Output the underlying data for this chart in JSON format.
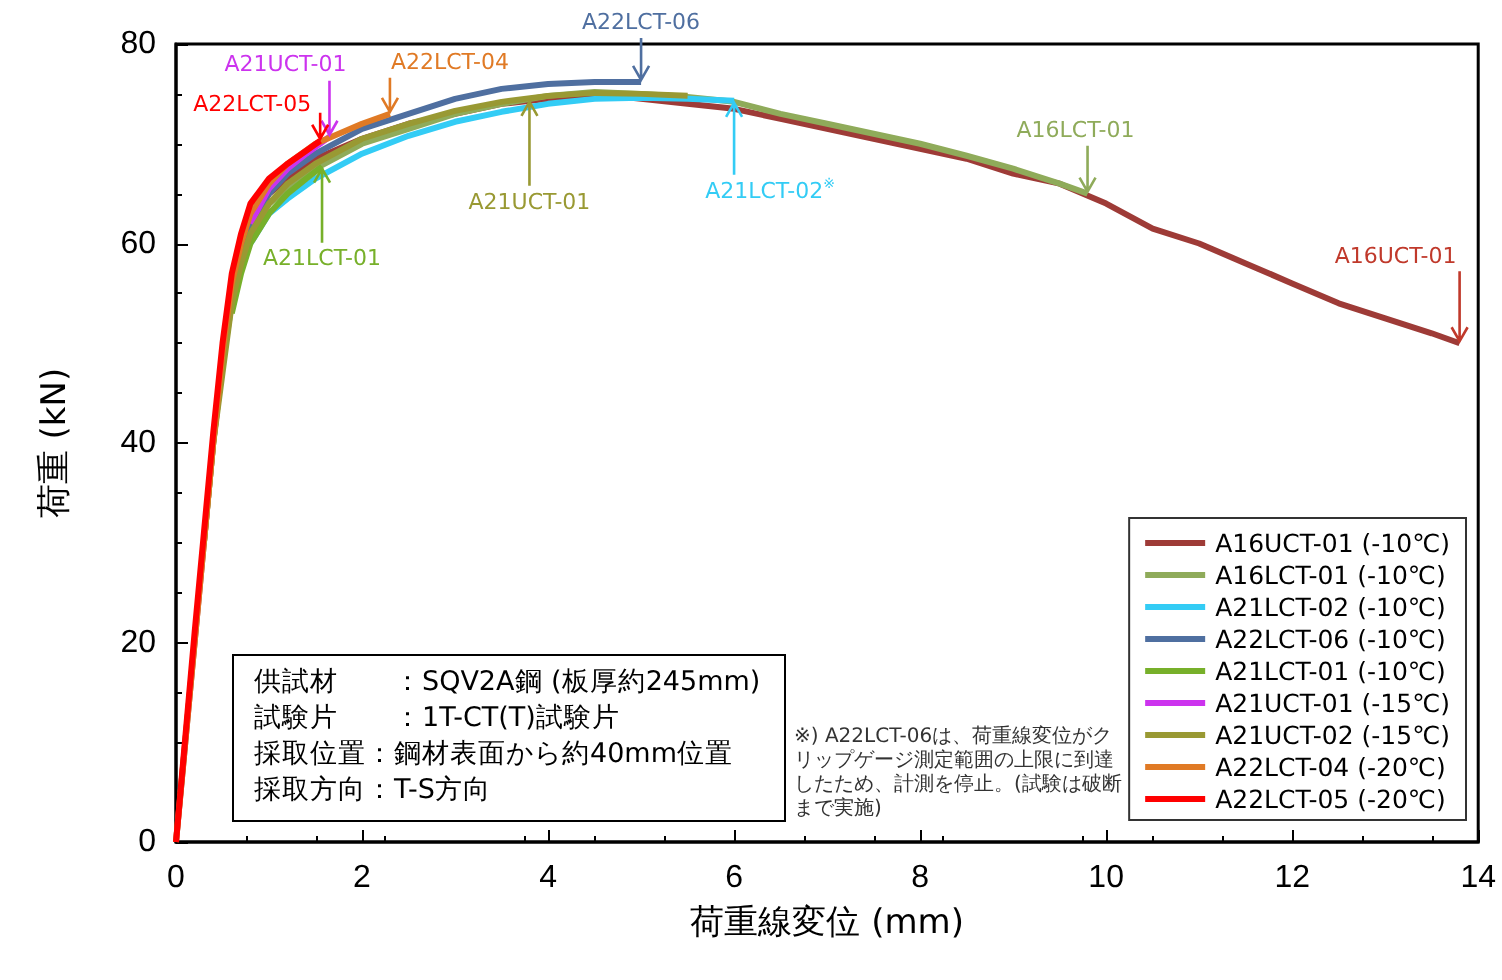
{
  "chart_data": {
    "type": "line",
    "xlabel": "荷重線変位 (mm)",
    "ylabel": "荷重 (kN)",
    "xlim": [
      0,
      14
    ],
    "xticks": [
      0,
      2,
      4,
      6,
      8,
      10,
      12,
      14
    ],
    "ylim": [
      0,
      80
    ],
    "yticks": [
      0,
      20,
      40,
      60,
      80
    ],
    "legend": "bottom right",
    "marker": "none",
    "line_style": "solid",
    "series": [
      {
        "name": "A16UCT-01 (-10℃)",
        "color": "#9e3b37",
        "x": [
          0,
          0.1,
          0.2,
          0.3,
          0.4,
          0.5,
          0.6,
          0.7,
          0.8,
          1,
          1.2,
          1.5,
          2,
          2.5,
          3,
          3.5,
          4,
          4.5,
          5,
          5.5,
          6,
          6.5,
          7,
          7.5,
          8,
          8.5,
          9,
          9.5,
          10,
          10.5,
          11,
          11.5,
          12,
          12.5,
          13,
          13.5,
          13.8
        ],
        "values": [
          0,
          10,
          20,
          30,
          40,
          48,
          55,
          59,
          62,
          65,
          66.5,
          68.5,
          70.5,
          72,
          73,
          74,
          74.5,
          75,
          74.5,
          74,
          73.5,
          72.5,
          71.5,
          70.5,
          69.5,
          68.5,
          67,
          66,
          64,
          61.5,
          60,
          58,
          56,
          54,
          52.5,
          51,
          50
        ]
      },
      {
        "name": "A16LCT-01 (-10℃)",
        "color": "#8fab5a",
        "x": [
          0.3,
          0.4,
          0.5,
          0.6,
          0.7,
          0.8,
          1,
          1.2,
          1.5,
          2,
          2.5,
          3,
          3.5,
          4,
          4.5,
          5,
          5.5,
          6,
          6.5,
          7,
          7.5,
          8,
          8.5,
          9,
          9.5,
          9.8
        ],
        "values": [
          30,
          40,
          48,
          54,
          58,
          61,
          64,
          65.5,
          67.5,
          70,
          71.5,
          73,
          74,
          74.8,
          75.2,
          75,
          74.7,
          74.2,
          73,
          72,
          71,
          70,
          68.8,
          67.5,
          66,
          65
        ]
      },
      {
        "name": "A21LCT-02 (-10℃)",
        "color": "#33ccf5",
        "x": [
          0.8,
          1,
          1.2,
          1.5,
          2,
          2.5,
          3,
          3.5,
          4,
          4.5,
          5,
          5.5,
          6
        ],
        "values": [
          60,
          63,
          64.5,
          66.5,
          69,
          70.8,
          72.2,
          73.2,
          74,
          74.5,
          74.6,
          74.5,
          74.3
        ]
      },
      {
        "name": "A22LCT-06 (-10℃)",
        "color": "#4f6fa0",
        "x": [
          0.7,
          0.8,
          1,
          1.2,
          1.5,
          2,
          2.5,
          3,
          3.5,
          4,
          4.5,
          5
        ],
        "values": [
          59,
          62,
          65,
          67,
          69,
          71.5,
          73,
          74.5,
          75.5,
          76,
          76.2,
          76.2
        ]
      },
      {
        "name": "A21LCT-01 (-10℃)",
        "color": "#77b02a",
        "x": [
          0.6,
          0.7,
          0.8,
          1,
          1.2,
          1.4,
          1.57
        ],
        "values": [
          53,
          57,
          60,
          63,
          65,
          66.5,
          67.7
        ]
      },
      {
        "name": "A21UCT-01 (-15℃)",
        "color": "#cc33ee",
        "x": [
          0.8,
          1,
          1.2,
          1.4,
          1.65
        ],
        "values": [
          62,
          65.5,
          67.5,
          69,
          70.7
        ]
      },
      {
        "name": "A21UCT-02 (-15℃)",
        "color": "#999933",
        "x": [
          0.3,
          0.4,
          0.5,
          0.6,
          0.7,
          0.8,
          1,
          1.2,
          1.5,
          2,
          2.5,
          3,
          3.5,
          4,
          4.5,
          5,
          5.5
        ],
        "values": [
          30,
          40,
          47,
          54,
          58,
          61,
          64,
          66,
          68,
          70.5,
          72,
          73.3,
          74.2,
          74.8,
          75.1,
          75,
          74.8
        ]
      },
      {
        "name": "A22LCT-04 (-20℃)",
        "color": "#e07a25",
        "x": [
          0,
          0.1,
          0.2,
          0.3,
          0.4,
          0.5,
          0.6,
          0.7,
          0.8,
          1,
          1.2,
          1.5,
          2,
          2.3
        ],
        "values": [
          0,
          10,
          20,
          30,
          40,
          49,
          56,
          60,
          63,
          66,
          68,
          70,
          72,
          73
        ]
      },
      {
        "name": "A22LCT-05 (-20℃)",
        "color": "#ff0000",
        "x": [
          0,
          0.1,
          0.2,
          0.3,
          0.4,
          0.5,
          0.6,
          0.7,
          0.8,
          1,
          1.2,
          1.4,
          1.55
        ],
        "values": [
          0,
          10.5,
          21,
          31,
          41,
          50,
          57,
          61,
          64,
          66.5,
          68,
          69.3,
          70.3
        ]
      }
    ],
    "annotations": [
      {
        "text": "A21UCT-01",
        "x": 1.65,
        "y": 70.7
      },
      {
        "text": "A22LCT-05",
        "x": 1.55,
        "y": 70.3
      },
      {
        "text": "A22LCT-04",
        "x": 2.3,
        "y": 73
      },
      {
        "text": "A22LCT-06",
        "x": 5,
        "y": 76.2
      },
      {
        "text": "A21LCT-01",
        "x": 1.57,
        "y": 67.7
      },
      {
        "text": "A21UCT-01",
        "x": 3.8,
        "y": 74.4
      },
      {
        "text": "A21LCT-02$^{※}$",
        "x": 6,
        "y": 74.3
      },
      {
        "text": "A16LCT-01",
        "x": 9.8,
        "y": 65
      },
      {
        "text": "A16UCT-01",
        "x": 13.8,
        "y": 50
      },
      "供試材　　：SQV2A鋼 (板厚約245mm)",
      "試験片　　：1T-CT(T)試験片",
      "採取位置：鋼材表面から約40mm位置",
      "採取方向：T-S方向",
      "※) A22LCT-06は、荷重線変位がクリップゲージ測定範囲の上限に到達したため、計測を停止。(試験は破断まで実施)"
    ]
  }
}
